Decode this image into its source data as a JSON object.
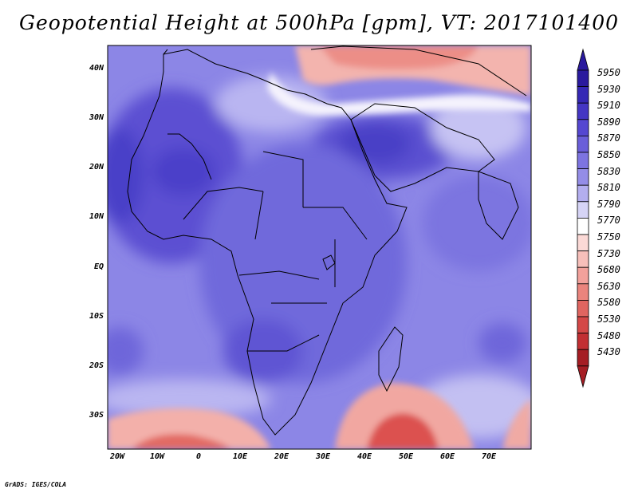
{
  "title": "Geopotential Height at 500hPa [gpm], VT: 2017101400",
  "credit": "GrADS: IGES/COLA",
  "lat_ticks": [
    "40N",
    "30N",
    "20N",
    "10N",
    "EQ",
    "10S",
    "20S",
    "30S"
  ],
  "lon_ticks": [
    "20W",
    "10W",
    "0",
    "10E",
    "20E",
    "30E",
    "40E",
    "50E",
    "60E",
    "70E"
  ],
  "colorbar": {
    "levels": [
      "5950",
      "5930",
      "5910",
      "5890",
      "5870",
      "5850",
      "5830",
      "5810",
      "5790",
      "5770",
      "5750",
      "5730",
      "5680",
      "5630",
      "5580",
      "5530",
      "5480",
      "5430"
    ],
    "colors": [
      "#2a1a9e",
      "#3528b5",
      "#4436c4",
      "#5547d1",
      "#6a5ed9",
      "#7d74e1",
      "#948de7",
      "#b3aeef",
      "#d6d4f6",
      "#ffffff",
      "#fbd9d6",
      "#f7bfba",
      "#f2a19b",
      "#ea847d",
      "#e06560",
      "#d44847",
      "#c22f33",
      "#a51d24"
    ]
  },
  "colors": {
    "ocean_base": "#8a83e6",
    "land_base": "#6e66dc",
    "warm_high": "#f3aaa4",
    "warm_low": "#d9504f"
  },
  "legend_meta": {
    "units": "gpm"
  }
}
